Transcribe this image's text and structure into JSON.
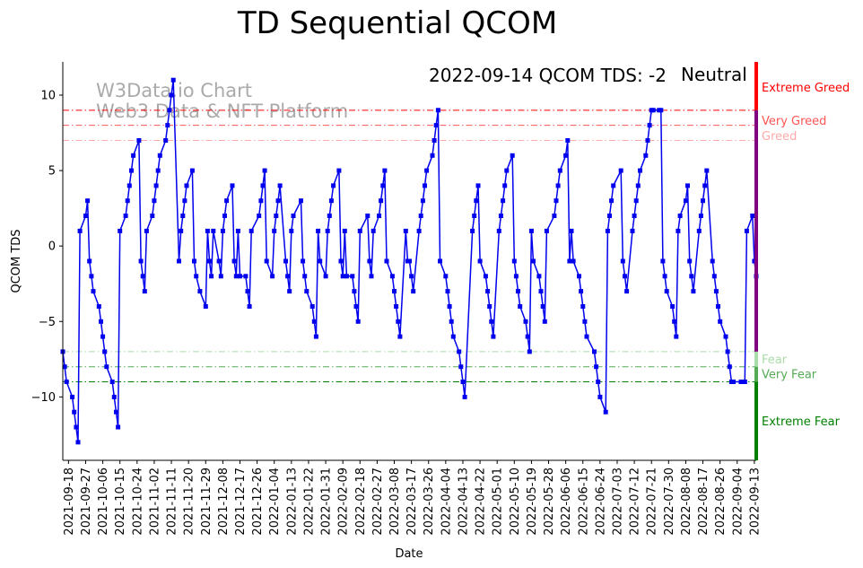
{
  "chart_data": {
    "type": "line",
    "title": "TD Sequential QCOM",
    "xlabel": "Date",
    "ylabel": "QCOM TDS",
    "ylim": [
      -14.2,
      12.2
    ],
    "yticks": [
      -10,
      -5,
      0,
      5,
      10
    ],
    "grid": false,
    "watermark": [
      "W3Data.io Chart",
      "Web3 Data & NFT Platform"
    ],
    "status": {
      "date": "2022-09-14",
      "symbol": "QCOM",
      "label": "TDS",
      "value": -2,
      "mood": "Neutral",
      "text": "2022-09-14 QCOM TDS: -2"
    },
    "date_range": [
      "2021-09-15",
      "2022-09-14"
    ],
    "tick_labels": [
      "2021-09-18",
      "2021-09-27",
      "2021-10-06",
      "2021-10-15",
      "2021-10-24",
      "2021-11-02",
      "2021-11-11",
      "2021-11-20",
      "2021-11-29",
      "2021-12-08",
      "2021-12-17",
      "2021-12-26",
      "2022-01-04",
      "2022-01-13",
      "2022-01-22",
      "2022-01-31",
      "2022-02-09",
      "2022-02-18",
      "2022-02-27",
      "2022-03-08",
      "2022-03-17",
      "2022-03-26",
      "2022-04-04",
      "2022-04-13",
      "2022-04-22",
      "2022-05-01",
      "2022-05-10",
      "2022-05-19",
      "2022-05-28",
      "2022-06-06",
      "2022-06-15",
      "2022-06-24",
      "2022-07-03",
      "2022-07-12",
      "2022-07-21",
      "2022-07-30",
      "2022-08-08",
      "2022-08-17",
      "2022-08-26",
      "2022-09-04",
      "2022-09-13"
    ],
    "thresholds": [
      {
        "name": "Extreme Greed",
        "value": 9,
        "color": "#ff0000"
      },
      {
        "name": "Very Greed",
        "value": 8,
        "color": "#ff5555"
      },
      {
        "name": "Greed",
        "value": 7,
        "color": "#ffaaaa"
      },
      {
        "name": "Fear",
        "value": -7,
        "color": "#aaddaa"
      },
      {
        "name": "Very Fear",
        "value": -8,
        "color": "#55aa55"
      },
      {
        "name": "Extreme Fear",
        "value": -9,
        "color": "#008000"
      }
    ],
    "zones": [
      {
        "name": "Extreme Greed",
        "from": 9,
        "to": 12.2,
        "color": "#ff0000"
      },
      {
        "name": "Neutral",
        "from": -7,
        "to": 9,
        "color": "#800080"
      },
      {
        "name": "Fear",
        "from": -8,
        "to": -7,
        "color": "#aaddaa"
      },
      {
        "name": "Very Fear",
        "from": -9,
        "to": -8,
        "color": "#55aa55"
      },
      {
        "name": "Extreme Fear",
        "from": -14.2,
        "to": -9,
        "color": "#008000"
      }
    ],
    "series": [
      {
        "color": "#0000ee",
        "x": [
          "2021-09-15",
          "2021-09-16",
          "2021-09-17",
          "2021-09-20",
          "2021-09-21",
          "2021-09-22",
          "2021-09-23",
          "2021-09-24",
          "2021-09-27",
          "2021-09-28",
          "2021-09-29",
          "2021-09-30",
          "2021-10-01",
          "2021-10-04",
          "2021-10-05",
          "2021-10-06",
          "2021-10-07",
          "2021-10-08",
          "2021-10-11",
          "2021-10-12",
          "2021-10-13",
          "2021-10-14",
          "2021-10-15",
          "2021-10-18",
          "2021-10-19",
          "2021-10-20",
          "2021-10-21",
          "2021-10-22",
          "2021-10-25",
          "2021-10-26",
          "2021-10-27",
          "2021-10-28",
          "2021-10-29",
          "2021-11-01",
          "2021-11-02",
          "2021-11-03",
          "2021-11-04",
          "2021-11-05",
          "2021-11-08",
          "2021-11-09",
          "2021-11-10",
          "2021-11-11",
          "2021-11-12",
          "2021-11-15",
          "2021-11-16",
          "2021-11-17",
          "2021-11-18",
          "2021-11-19",
          "2021-11-22",
          "2021-11-23",
          "2021-11-24",
          "2021-11-26",
          "2021-11-29",
          "2021-11-30",
          "2021-12-01",
          "2021-12-02",
          "2021-12-03",
          "2021-12-06",
          "2021-12-07",
          "2021-12-08",
          "2021-12-09",
          "2021-12-10",
          "2021-12-13",
          "2021-12-14",
          "2021-12-15",
          "2021-12-16",
          "2021-12-17",
          "2021-12-20",
          "2021-12-21",
          "2021-12-22",
          "2021-12-23",
          "2021-12-27",
          "2021-12-28",
          "2021-12-29",
          "2021-12-30",
          "2021-12-31",
          "2022-01-03",
          "2022-01-04",
          "2022-01-05",
          "2022-01-06",
          "2022-01-07",
          "2022-01-10",
          "2022-01-11",
          "2022-01-12",
          "2022-01-13",
          "2022-01-14",
          "2022-01-18",
          "2022-01-19",
          "2022-01-20",
          "2022-01-21",
          "2022-01-24",
          "2022-01-25",
          "2022-01-26",
          "2022-01-27",
          "2022-01-28",
          "2022-01-31",
          "2022-02-01",
          "2022-02-02",
          "2022-02-03",
          "2022-02-04",
          "2022-02-07",
          "2022-02-08",
          "2022-02-09",
          "2022-02-10",
          "2022-02-11",
          "2022-02-14",
          "2022-02-15",
          "2022-02-16",
          "2022-02-17",
          "2022-02-18",
          "2022-02-22",
          "2022-02-23",
          "2022-02-24",
          "2022-02-25",
          "2022-02-28",
          "2022-03-01",
          "2022-03-02",
          "2022-03-03",
          "2022-03-04",
          "2022-03-07",
          "2022-03-08",
          "2022-03-09",
          "2022-03-10",
          "2022-03-11",
          "2022-03-14",
          "2022-03-15",
          "2022-03-16",
          "2022-03-17",
          "2022-03-18",
          "2022-03-21",
          "2022-03-22",
          "2022-03-23",
          "2022-03-24",
          "2022-03-25",
          "2022-03-28",
          "2022-03-29",
          "2022-03-30",
          "2022-03-31",
          "2022-04-01",
          "2022-04-04",
          "2022-04-05",
          "2022-04-06",
          "2022-04-07",
          "2022-04-08",
          "2022-04-11",
          "2022-04-12",
          "2022-04-13",
          "2022-04-14",
          "2022-04-18",
          "2022-04-19",
          "2022-04-20",
          "2022-04-21",
          "2022-04-22",
          "2022-04-25",
          "2022-04-26",
          "2022-04-27",
          "2022-04-28",
          "2022-04-29",
          "2022-05-02",
          "2022-05-03",
          "2022-05-04",
          "2022-05-05",
          "2022-05-06",
          "2022-05-09",
          "2022-05-10",
          "2022-05-11",
          "2022-05-12",
          "2022-05-13",
          "2022-05-16",
          "2022-05-17",
          "2022-05-18",
          "2022-05-19",
          "2022-05-20",
          "2022-05-23",
          "2022-05-24",
          "2022-05-25",
          "2022-05-26",
          "2022-05-27",
          "2022-05-31",
          "2022-06-01",
          "2022-06-02",
          "2022-06-03",
          "2022-06-06",
          "2022-06-07",
          "2022-06-08",
          "2022-06-09",
          "2022-06-10",
          "2022-06-13",
          "2022-06-14",
          "2022-06-15",
          "2022-06-16",
          "2022-06-17",
          "2022-06-21",
          "2022-06-22",
          "2022-06-23",
          "2022-06-24",
          "2022-06-27",
          "2022-06-28",
          "2022-06-29",
          "2022-06-30",
          "2022-07-01",
          "2022-07-05",
          "2022-07-06",
          "2022-07-07",
          "2022-07-08",
          "2022-07-11",
          "2022-07-12",
          "2022-07-13",
          "2022-07-14",
          "2022-07-15",
          "2022-07-18",
          "2022-07-19",
          "2022-07-20",
          "2022-07-21",
          "2022-07-22",
          "2022-07-25",
          "2022-07-26",
          "2022-07-27",
          "2022-07-28",
          "2022-07-29",
          "2022-08-01",
          "2022-08-02",
          "2022-08-03",
          "2022-08-04",
          "2022-08-05",
          "2022-08-08",
          "2022-08-09",
          "2022-08-10",
          "2022-08-11",
          "2022-08-12",
          "2022-08-15",
          "2022-08-16",
          "2022-08-17",
          "2022-08-18",
          "2022-08-19",
          "2022-08-22",
          "2022-08-23",
          "2022-08-24",
          "2022-08-25",
          "2022-08-26",
          "2022-08-29",
          "2022-08-30",
          "2022-08-31",
          "2022-09-01",
          "2022-09-02",
          "2022-09-06",
          "2022-09-07",
          "2022-09-08",
          "2022-09-09",
          "2022-09-12",
          "2022-09-13",
          "2022-09-14"
        ],
        "values": [
          -7,
          -8,
          -9,
          -10,
          -11,
          -12,
          -13,
          1,
          2,
          3,
          -1,
          -2,
          -3,
          -4,
          -5,
          -6,
          -7,
          -8,
          -9,
          -10,
          -11,
          -12,
          1,
          2,
          3,
          4,
          5,
          6,
          7,
          -1,
          -2,
          -3,
          1,
          2,
          3,
          4,
          5,
          6,
          7,
          8,
          9,
          10,
          11,
          -1,
          1,
          2,
          3,
          4,
          5,
          -1,
          -2,
          -3,
          -4,
          1,
          -1,
          -2,
          1,
          -1,
          -2,
          1,
          2,
          3,
          4,
          -1,
          -2,
          1,
          -2,
          -2,
          -3,
          -4,
          1,
          2,
          3,
          4,
          5,
          -1,
          -2,
          1,
          2,
          3,
          4,
          -1,
          -2,
          -3,
          1,
          2,
          3,
          -1,
          -2,
          -3,
          -4,
          -5,
          -6,
          1,
          -1,
          -2,
          1,
          2,
          3,
          4,
          5,
          -1,
          -2,
          1,
          -2,
          -2,
          -3,
          -4,
          -5,
          1,
          2,
          -1,
          -2,
          1,
          2,
          3,
          4,
          5,
          -1,
          -2,
          -3,
          -4,
          -5,
          -6,
          1,
          -1,
          -1,
          -2,
          -3,
          1,
          2,
          3,
          4,
          5,
          6,
          7,
          8,
          9,
          -1,
          -2,
          -3,
          -4,
          -5,
          -6,
          -7,
          -8,
          -9,
          -10,
          1,
          2,
          3,
          4,
          -1,
          -2,
          -3,
          -4,
          -5,
          -6,
          1,
          2,
          3,
          4,
          5,
          6,
          -1,
          -2,
          -3,
          -4,
          -5,
          -6,
          -7,
          1,
          -1,
          -2,
          -3,
          -4,
          -5,
          1,
          2,
          3,
          4,
          5,
          6,
          7,
          -1,
          1,
          -1,
          -2,
          -3,
          -4,
          -5,
          -6,
          -7,
          -8,
          -9,
          -10,
          -11,
          1,
          2,
          3,
          4,
          5,
          -1,
          -2,
          -3,
          1,
          2,
          3,
          4,
          5,
          6,
          7,
          8,
          9,
          9,
          9,
          9,
          -1,
          -2,
          -3,
          -4,
          -5,
          -6,
          1,
          2,
          3,
          4,
          -1,
          -2,
          -3,
          1,
          2,
          3,
          4,
          5,
          -1,
          -2,
          -3,
          -4,
          -5,
          -6,
          -7,
          -8,
          -9,
          -9,
          -9,
          -9,
          -9,
          1,
          2,
          -1,
          -2
        ]
      }
    ]
  }
}
